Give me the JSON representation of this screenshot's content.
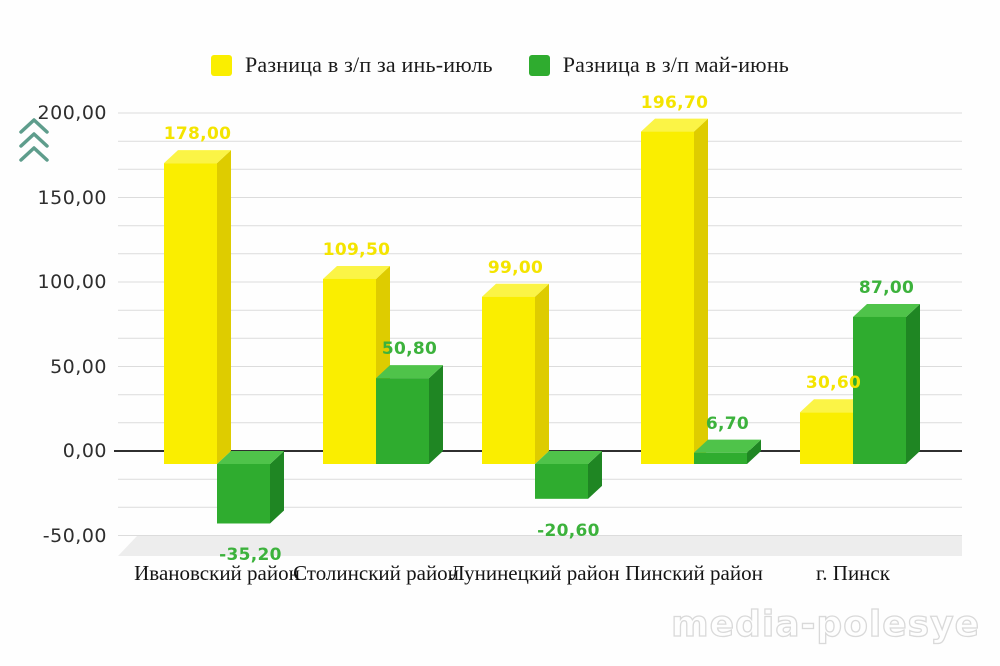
{
  "watermark": "media-polesye",
  "chart_data": {
    "type": "bar",
    "style": "3d-column",
    "title": "",
    "xlabel": "",
    "ylabel": "",
    "categories": [
      "Ивановский район",
      "Столинский район",
      "Лунинецкий район",
      "Пинский район",
      "г. Пинск"
    ],
    "series": [
      {
        "name": "Разница в з/п за инь-июль",
        "values": [
          178.0,
          109.5,
          99.0,
          196.7,
          30.6
        ],
        "color_front": "#FAEE00",
        "color_top": "#FBF446",
        "color_side": "#DECC00",
        "label_color": "#F4E400"
      },
      {
        "name": "Разница в з/п май-июнь",
        "values": [
          -35.2,
          50.8,
          -20.6,
          6.7,
          87.0
        ],
        "color_front": "#2FAC2F",
        "color_top": "#4FC34A",
        "color_side": "#1F8623",
        "label_color": "#3CB23C"
      }
    ],
    "ylim": [
      -50,
      200
    ],
    "yticks": [
      200,
      150,
      100,
      50,
      0,
      -50
    ],
    "ytick_labels": [
      "200,00",
      "150,00",
      "100,00",
      "50,00",
      "0,00",
      "-50,00"
    ],
    "minor_grid_divisions_per_major": 3,
    "grid": true,
    "legend_position": "top",
    "decimal_separator": ",",
    "colors": {
      "gridline": "#dcdcdc",
      "zero_line": "#2f2f2f",
      "floor": "#ededed",
      "chevron_icon": "#5e9d8c"
    }
  }
}
